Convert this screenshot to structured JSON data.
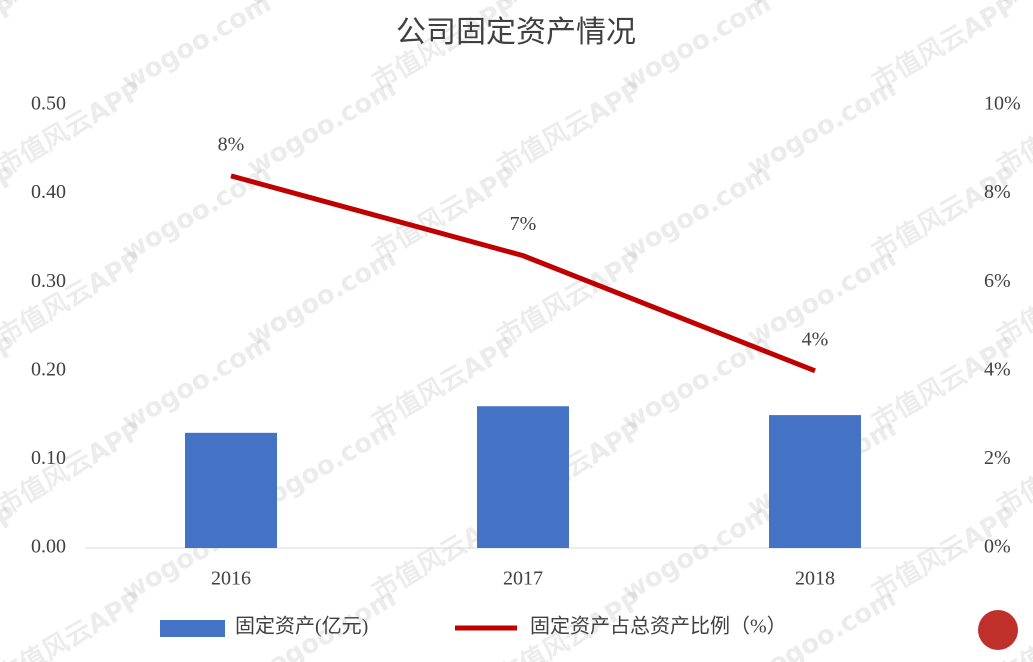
{
  "chart_data": {
    "type": "combo",
    "title": "公司固定资产情况",
    "categories": [
      "2016",
      "2017",
      "2018"
    ],
    "series": [
      {
        "name": "固定资产(亿元)",
        "type": "bar",
        "color": "#4472c4",
        "values": [
          0.13,
          0.16,
          0.15
        ]
      },
      {
        "name": "固定资产占总资产比例（%）",
        "type": "line",
        "color": "#c00000",
        "axis": "y2",
        "values": [
          8.4,
          6.6,
          4.0
        ],
        "value_labels": [
          "8%",
          "7%",
          "4%"
        ]
      }
    ],
    "ylim": [
      0,
      0.5
    ],
    "yticks": [
      {
        "value": 0,
        "label": "0.00"
      },
      {
        "value": 0.1,
        "label": "0.10"
      },
      {
        "value": 0.2,
        "label": "0.20"
      },
      {
        "value": 0.3,
        "label": "0.30"
      },
      {
        "value": 0.4,
        "label": "0.40"
      },
      {
        "value": 0.5,
        "label": "0.50"
      }
    ],
    "y2lim": [
      0,
      10
    ],
    "y2ticks": [
      {
        "value": 0,
        "label": "0%"
      },
      {
        "value": 2,
        "label": "2%"
      },
      {
        "value": 4,
        "label": "4%"
      },
      {
        "value": 6,
        "label": "6%"
      },
      {
        "value": 8,
        "label": "8%"
      },
      {
        "value": 10,
        "label": "10%"
      }
    ],
    "grid": false,
    "legend": "bottom",
    "watermark": [
      "市值风云APP",
      "wogoo.com"
    ]
  }
}
